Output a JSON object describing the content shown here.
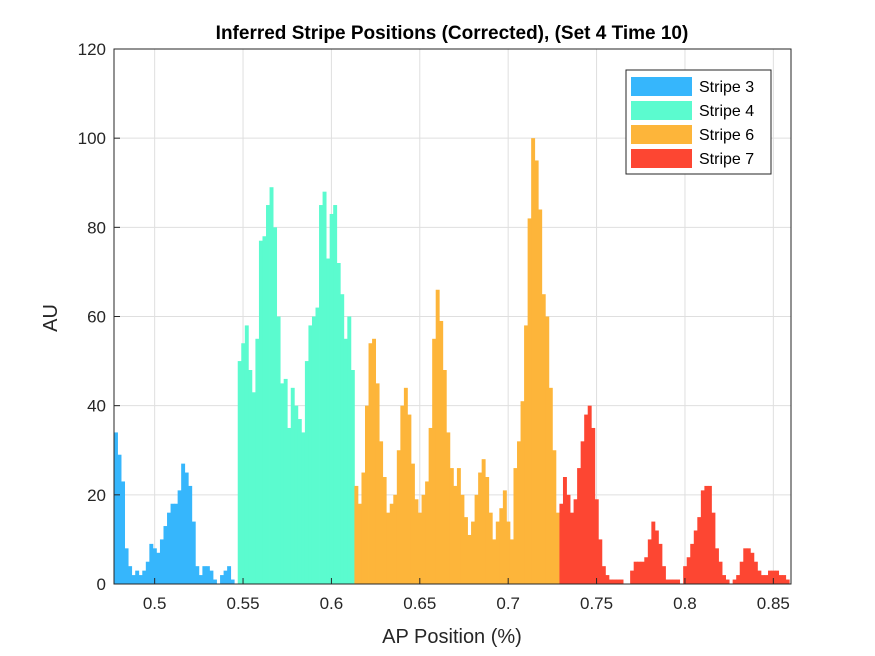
{
  "chart_data": {
    "type": "bar",
    "title": "Inferred Stripe Positions (Corrected),  (Set 4 Time 10)",
    "xlabel": "AP Position (%)",
    "ylabel": "AU",
    "xlim": [
      0.477,
      0.86
    ],
    "ylim": [
      0,
      120
    ],
    "xticks": [
      0.5,
      0.55,
      0.6,
      0.65,
      0.7,
      0.75,
      0.8,
      0.85
    ],
    "xtick_labels": [
      "0.5",
      "0.55",
      "0.6",
      "0.65",
      "0.7",
      "0.75",
      "0.8",
      "0.85"
    ],
    "yticks": [
      0,
      20,
      40,
      60,
      80,
      100,
      120
    ],
    "ytick_labels": [
      "0",
      "20",
      "40",
      "60",
      "80",
      "100",
      "120"
    ],
    "grid": true,
    "legend_position": "top-right",
    "bin_width": 0.002,
    "series": [
      {
        "name": "Stripe 3",
        "color": "#36B6FC",
        "x": [
          0.478,
          0.48,
          0.482,
          0.484,
          0.486,
          0.488,
          0.49,
          0.492,
          0.494,
          0.496,
          0.498,
          0.5,
          0.502,
          0.504,
          0.506,
          0.508,
          0.51,
          0.512,
          0.514,
          0.516,
          0.518,
          0.52,
          0.522,
          0.524,
          0.526,
          0.528,
          0.53,
          0.532,
          0.534,
          0.536,
          0.538,
          0.54,
          0.542,
          0.544
        ],
        "values": [
          34,
          29,
          23,
          8,
          4,
          2,
          3,
          2,
          3,
          5,
          9,
          8,
          7,
          10,
          13,
          16,
          18,
          18,
          21,
          27,
          25,
          22,
          14,
          4,
          2,
          4,
          4,
          3,
          1,
          0,
          2,
          3,
          4,
          1
        ]
      },
      {
        "name": "Stripe 4",
        "color": "#5BFBCF",
        "x": [
          0.548,
          0.55,
          0.552,
          0.554,
          0.556,
          0.558,
          0.56,
          0.562,
          0.564,
          0.566,
          0.568,
          0.57,
          0.572,
          0.574,
          0.576,
          0.578,
          0.58,
          0.582,
          0.584,
          0.586,
          0.588,
          0.59,
          0.592,
          0.594,
          0.596,
          0.598,
          0.6,
          0.602,
          0.604,
          0.606,
          0.608,
          0.61,
          0.612
        ],
        "values": [
          50,
          54,
          58,
          48,
          43,
          55,
          77,
          78,
          85,
          89,
          80,
          60,
          45,
          46,
          35,
          44,
          40,
          37,
          34,
          50,
          58,
          60,
          62,
          85,
          88,
          73,
          83,
          85,
          72,
          65,
          55,
          60,
          48
        ]
      },
      {
        "name": "Stripe 6",
        "color": "#FDB53A",
        "x": [
          0.614,
          0.616,
          0.618,
          0.62,
          0.622,
          0.624,
          0.626,
          0.628,
          0.63,
          0.632,
          0.634,
          0.636,
          0.638,
          0.64,
          0.642,
          0.644,
          0.646,
          0.648,
          0.65,
          0.652,
          0.654,
          0.656,
          0.658,
          0.66,
          0.662,
          0.664,
          0.666,
          0.668,
          0.67,
          0.672,
          0.674,
          0.676,
          0.678,
          0.68,
          0.682,
          0.684,
          0.686,
          0.688,
          0.69,
          0.692,
          0.694,
          0.696,
          0.698,
          0.7,
          0.702,
          0.704,
          0.706,
          0.708,
          0.71,
          0.712,
          0.714,
          0.716,
          0.718,
          0.72,
          0.722,
          0.724,
          0.726,
          0.728
        ],
        "values": [
          22,
          18,
          25,
          40,
          54,
          55,
          45,
          32,
          24,
          16,
          18,
          20,
          30,
          40,
          44,
          38,
          27,
          19,
          16,
          20,
          23,
          35,
          55,
          66,
          59,
          48,
          34,
          26,
          22,
          26,
          20,
          15,
          11,
          14,
          20,
          25,
          28,
          24,
          16,
          10,
          14,
          17,
          21,
          14,
          10,
          26,
          32,
          41,
          58,
          82,
          100,
          95,
          84,
          65,
          60,
          44,
          30,
          16
        ]
      },
      {
        "name": "Stripe 7",
        "color": "#FD4632",
        "x": [
          0.73,
          0.732,
          0.734,
          0.736,
          0.738,
          0.74,
          0.742,
          0.744,
          0.746,
          0.748,
          0.75,
          0.752,
          0.754,
          0.756,
          0.758,
          0.76,
          0.762,
          0.764,
          0.766,
          0.768,
          0.77,
          0.772,
          0.774,
          0.776,
          0.778,
          0.78,
          0.782,
          0.784,
          0.786,
          0.788,
          0.79,
          0.792,
          0.794,
          0.796,
          0.798,
          0.8,
          0.802,
          0.804,
          0.806,
          0.808,
          0.81,
          0.812,
          0.814,
          0.816,
          0.818,
          0.82,
          0.822,
          0.824,
          0.826,
          0.828,
          0.83,
          0.832,
          0.834,
          0.836,
          0.838,
          0.84,
          0.842,
          0.844,
          0.846,
          0.848,
          0.85,
          0.852,
          0.854,
          0.856,
          0.858
        ],
        "values": [
          18,
          24,
          20,
          16,
          19,
          26,
          32,
          38,
          40,
          35,
          19,
          10,
          4,
          2,
          1,
          1,
          1,
          1,
          0,
          0,
          3,
          5,
          5,
          5,
          6,
          10,
          14,
          12,
          9,
          4,
          1,
          1,
          1,
          1,
          0,
          4,
          6,
          9,
          12,
          15,
          21,
          22,
          22,
          16,
          8,
          5,
          2,
          1,
          0,
          1,
          2,
          5,
          8,
          8,
          7,
          5,
          3,
          2,
          2,
          3,
          3,
          3,
          2,
          2,
          1
        ]
      }
    ]
  }
}
